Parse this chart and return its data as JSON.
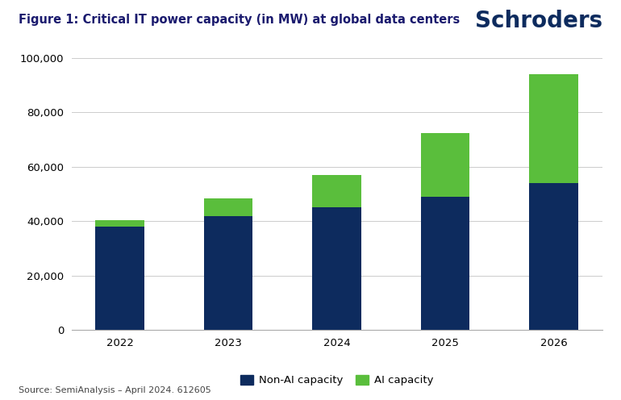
{
  "title": "Figure 1: Critical IT power capacity (in MW) at global data centers",
  "logo_text": "Schroders",
  "years": [
    "2022",
    "2023",
    "2024",
    "2025",
    "2026"
  ],
  "non_ai": [
    38000,
    42000,
    45000,
    49000,
    54000
  ],
  "ai": [
    2500,
    6500,
    12000,
    23500,
    40000
  ],
  "color_non_ai": "#0d2b5e",
  "color_ai": "#5abe3c",
  "ylim": [
    0,
    100000
  ],
  "yticks": [
    0,
    20000,
    40000,
    60000,
    80000,
    100000
  ],
  "legend_non_ai": "Non-AI capacity",
  "legend_ai": "AI capacity",
  "source_text": "Source: SemiAnalysis – April 2024. 612605",
  "background_color": "#ffffff",
  "bar_width": 0.45,
  "title_fontsize": 10.5,
  "tick_fontsize": 9.5,
  "legend_fontsize": 9.5,
  "source_fontsize": 8,
  "logo_fontsize": 20
}
